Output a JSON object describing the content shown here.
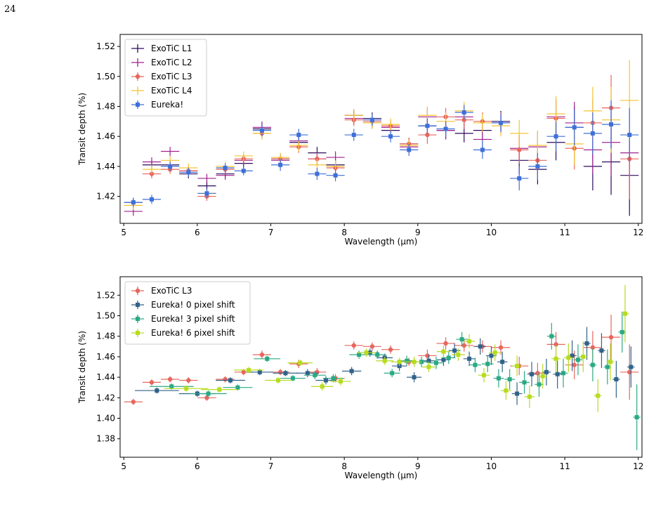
{
  "page_number": "24",
  "chart_data": [
    {
      "type": "scatter",
      "title": "",
      "xlabel": "Wavelength (µm)",
      "ylabel": "Transit depth (%)",
      "xlim": [
        4.95,
        12.05
      ],
      "ylim": [
        1.402,
        1.528
      ],
      "xticks": [
        5,
        6,
        7,
        8,
        9,
        10,
        11,
        12
      ],
      "yticks": [
        1.42,
        1.44,
        1.46,
        1.48,
        1.5,
        1.52
      ],
      "ytick_labels": [
        "1.42",
        "1.44",
        "1.46",
        "1.48",
        "1.50",
        "1.52"
      ],
      "grid": false,
      "legend_position": "top-left",
      "x": [
        5.13,
        5.38,
        5.63,
        5.88,
        6.13,
        6.38,
        6.63,
        6.88,
        7.13,
        7.38,
        7.63,
        7.88,
        8.13,
        8.38,
        8.63,
        8.88,
        9.13,
        9.38,
        9.63,
        9.88,
        10.13,
        10.38,
        10.63,
        10.88,
        11.13,
        11.38,
        11.63,
        11.88
      ],
      "xerr": 0.125,
      "series": [
        {
          "name": "ExoTiC L1",
          "color": "#2c0a5e",
          "marker": "none",
          "y": [
            1.416,
            1.441,
            1.441,
            1.435,
            1.427,
            1.435,
            1.442,
            1.465,
            1.445,
            1.456,
            1.449,
            1.441,
            1.474,
            1.472,
            1.464,
            1.455,
            1.467,
            1.464,
            1.462,
            1.464,
            1.47,
            1.444,
            1.438,
            1.456,
            1.466,
            1.44,
            1.443,
            1.434
          ],
          "yerr": [
            0.003,
            0.003,
            0.003,
            0.003,
            0.003,
            0.003,
            0.003,
            0.004,
            0.003,
            0.004,
            0.004,
            0.004,
            0.004,
            0.004,
            0.004,
            0.004,
            0.006,
            0.006,
            0.006,
            0.006,
            0.007,
            0.009,
            0.01,
            0.012,
            0.014,
            0.016,
            0.022,
            0.027
          ]
        },
        {
          "name": "ExoTiC L2",
          "color": "#a1228f",
          "marker": "none",
          "y": [
            1.41,
            1.443,
            1.45,
            1.437,
            1.432,
            1.434,
            1.444,
            1.466,
            1.444,
            1.457,
            1.445,
            1.446,
            1.472,
            1.469,
            1.466,
            1.453,
            1.473,
            1.464,
            1.473,
            1.458,
            1.469,
            1.452,
            1.453,
            1.473,
            1.469,
            1.451,
            1.456,
            1.449
          ],
          "yerr": [
            0.003,
            0.003,
            0.003,
            0.003,
            0.003,
            0.003,
            0.003,
            0.004,
            0.003,
            0.004,
            0.004,
            0.004,
            0.004,
            0.004,
            0.004,
            0.004,
            0.006,
            0.006,
            0.006,
            0.006,
            0.007,
            0.009,
            0.01,
            0.012,
            0.014,
            0.016,
            0.022,
            0.027
          ]
        },
        {
          "name": "ExoTiC L3",
          "color": "#e8665e",
          "marker": "circle",
          "y": [
            1.416,
            1.435,
            1.438,
            1.437,
            1.42,
            1.438,
            1.445,
            1.462,
            1.445,
            1.453,
            1.445,
            1.439,
            1.471,
            1.47,
            1.467,
            1.455,
            1.461,
            1.473,
            1.471,
            1.47,
            1.469,
            1.451,
            1.444,
            1.472,
            1.452,
            1.469,
            1.479,
            1.445
          ],
          "yerr": [
            0.003,
            0.003,
            0.003,
            0.003,
            0.003,
            0.003,
            0.003,
            0.004,
            0.003,
            0.004,
            0.004,
            0.004,
            0.004,
            0.004,
            0.004,
            0.004,
            0.006,
            0.006,
            0.006,
            0.006,
            0.007,
            0.009,
            0.01,
            0.012,
            0.014,
            0.016,
            0.022,
            0.027
          ]
        },
        {
          "name": "ExoTiC L4",
          "color": "#f5c431",
          "marker": "none",
          "y": [
            1.414,
            1.438,
            1.444,
            1.439,
            1.422,
            1.44,
            1.447,
            1.462,
            1.446,
            1.454,
            1.441,
            1.44,
            1.474,
            1.469,
            1.468,
            1.454,
            1.474,
            1.47,
            1.477,
            1.469,
            1.467,
            1.462,
            1.454,
            1.475,
            1.455,
            1.477,
            1.471,
            1.484
          ],
          "yerr": [
            0.003,
            0.003,
            0.003,
            0.003,
            0.003,
            0.003,
            0.003,
            0.004,
            0.003,
            0.004,
            0.004,
            0.004,
            0.004,
            0.004,
            0.004,
            0.004,
            0.006,
            0.006,
            0.006,
            0.006,
            0.007,
            0.009,
            0.01,
            0.012,
            0.014,
            0.016,
            0.022,
            0.027
          ]
        },
        {
          "name": "Eureka!",
          "color": "#3e6fd8",
          "marker": "square",
          "x": [
            5.13,
            5.38,
            5.63,
            5.88,
            6.13,
            6.38,
            6.63,
            6.88,
            7.13,
            7.38,
            7.63,
            7.88,
            8.13,
            8.38,
            8.63,
            8.88,
            9.13,
            9.38,
            9.63,
            9.88,
            10.13,
            10.38,
            10.63,
            10.88,
            11.13,
            11.38,
            11.63,
            11.88
          ],
          "y": [
            1.416,
            1.418,
            1.44,
            1.436,
            1.422,
            1.439,
            1.437,
            1.464,
            1.441,
            1.461,
            1.435,
            1.434,
            1.461,
            1.471,
            1.46,
            1.451,
            1.467,
            1.465,
            1.476,
            1.451,
            1.469,
            1.432,
            1.44,
            1.46,
            1.466,
            1.462,
            1.468,
            1.461
          ],
          "yerr": [
            0.003,
            0.003,
            0.003,
            0.003,
            0.003,
            0.003,
            0.003,
            0.004,
            0.004,
            0.004,
            0.004,
            0.004,
            0.004,
            0.004,
            0.004,
            0.004,
            0.005,
            0.005,
            0.005,
            0.006,
            0.006,
            0.008,
            0.009,
            0.01,
            0.012,
            0.014,
            0.016,
            0.018
          ]
        }
      ]
    },
    {
      "type": "scatter",
      "title": "",
      "xlabel": "Wavelength (µm)",
      "ylabel": "Transit depth (%)",
      "xlim": [
        4.95,
        12.05
      ],
      "ylim": [
        1.362,
        1.538
      ],
      "xticks": [
        5,
        6,
        7,
        8,
        9,
        10,
        11,
        12
      ],
      "yticks": [
        1.38,
        1.4,
        1.42,
        1.44,
        1.46,
        1.48,
        1.5,
        1.52
      ],
      "ytick_labels": [
        "1.38",
        "1.40",
        "1.42",
        "1.44",
        "1.46",
        "1.48",
        "1.50",
        "1.52"
      ],
      "grid": false,
      "legend_position": "top-left",
      "series": [
        {
          "name": "ExoTiC L3",
          "color": "#e8665e",
          "marker": "circle",
          "x": [
            5.13,
            5.38,
            5.63,
            5.88,
            6.13,
            6.38,
            6.63,
            6.88,
            7.13,
            7.38,
            7.63,
            7.88,
            8.13,
            8.38,
            8.63,
            8.88,
            9.13,
            9.38,
            9.63,
            9.88,
            10.13,
            10.38,
            10.63,
            10.88,
            11.13,
            11.38,
            11.63,
            11.88
          ],
          "xerr": [
            0.125,
            0.125,
            0.125,
            0.125,
            0.125,
            0.125,
            0.125,
            0.125,
            0.125,
            0.125,
            0.125,
            0.125,
            0.125,
            0.125,
            0.125,
            0.125,
            0.125,
            0.125,
            0.125,
            0.125,
            0.125,
            0.125,
            0.125,
            0.125,
            0.125,
            0.125,
            0.125,
            0.125
          ],
          "y": [
            1.416,
            1.435,
            1.438,
            1.437,
            1.42,
            1.438,
            1.445,
            1.462,
            1.445,
            1.453,
            1.445,
            1.439,
            1.471,
            1.47,
            1.467,
            1.455,
            1.461,
            1.473,
            1.471,
            1.47,
            1.469,
            1.451,
            1.444,
            1.472,
            1.452,
            1.469,
            1.479,
            1.445
          ],
          "yerr": [
            0.003,
            0.003,
            0.003,
            0.003,
            0.003,
            0.003,
            0.003,
            0.004,
            0.003,
            0.004,
            0.004,
            0.004,
            0.004,
            0.004,
            0.004,
            0.004,
            0.006,
            0.006,
            0.006,
            0.006,
            0.007,
            0.009,
            0.01,
            0.012,
            0.014,
            0.016,
            0.022,
            0.027
          ]
        },
        {
          "name": "Eureka! 0 pixel shift",
          "color": "#31628a",
          "marker": "square",
          "x": [
            5.45,
            6.0,
            6.45,
            6.85,
            7.2,
            7.5,
            7.75,
            8.1,
            8.35,
            8.55,
            8.75,
            8.95,
            9.15,
            9.35,
            9.5,
            9.7,
            9.85,
            10.0,
            10.15,
            10.35,
            10.55,
            10.75,
            10.9,
            11.1,
            11.3,
            11.5,
            11.7,
            11.9
          ],
          "xerr": [
            0.3,
            0.25,
            0.2,
            0.18,
            0.17,
            0.15,
            0.14,
            0.13,
            0.12,
            0.11,
            0.1,
            0.1,
            0.09,
            0.09,
            0.08,
            0.08,
            0.08,
            0.07,
            0.07,
            0.07,
            0.06,
            0.06,
            0.06,
            0.06,
            0.05,
            0.05,
            0.05,
            0.05
          ],
          "y": [
            1.427,
            1.424,
            1.437,
            1.445,
            1.444,
            1.444,
            1.437,
            1.446,
            1.464,
            1.459,
            1.451,
            1.44,
            1.456,
            1.457,
            1.466,
            1.458,
            1.47,
            1.461,
            1.455,
            1.424,
            1.443,
            1.445,
            1.443,
            1.461,
            1.473,
            1.466,
            1.438,
            1.45
          ],
          "yerr": [
            0.003,
            0.003,
            0.003,
            0.003,
            0.003,
            0.004,
            0.004,
            0.004,
            0.004,
            0.004,
            0.005,
            0.005,
            0.006,
            0.006,
            0.007,
            0.007,
            0.008,
            0.009,
            0.01,
            0.011,
            0.012,
            0.013,
            0.014,
            0.015,
            0.016,
            0.017,
            0.018,
            0.02
          ]
        },
        {
          "name": "Eureka! 3 pixel shift",
          "color": "#2aa983",
          "marker": "square",
          "x": [
            5.65,
            6.15,
            6.55,
            6.95,
            7.3,
            7.6,
            7.85,
            8.2,
            8.45,
            8.65,
            8.85,
            9.05,
            9.25,
            9.42,
            9.6,
            9.78,
            9.95,
            10.1,
            10.25,
            10.45,
            10.65,
            10.82,
            10.98,
            11.18,
            11.38,
            11.58,
            11.78,
            11.98
          ],
          "xerr": [
            0.3,
            0.25,
            0.2,
            0.18,
            0.17,
            0.15,
            0.14,
            0.13,
            0.12,
            0.11,
            0.1,
            0.1,
            0.09,
            0.09,
            0.08,
            0.08,
            0.08,
            0.07,
            0.07,
            0.07,
            0.06,
            0.06,
            0.06,
            0.06,
            0.05,
            0.05,
            0.05,
            0.05
          ],
          "y": [
            1.431,
            1.424,
            1.43,
            1.458,
            1.439,
            1.442,
            1.439,
            1.462,
            1.462,
            1.444,
            1.456,
            1.455,
            1.454,
            1.459,
            1.477,
            1.452,
            1.453,
            1.439,
            1.438,
            1.435,
            1.433,
            1.48,
            1.444,
            1.457,
            1.452,
            1.45,
            1.484,
            1.401
          ],
          "yerr": [
            0.003,
            0.003,
            0.003,
            0.003,
            0.003,
            0.004,
            0.004,
            0.004,
            0.004,
            0.004,
            0.005,
            0.005,
            0.006,
            0.006,
            0.007,
            0.007,
            0.008,
            0.009,
            0.01,
            0.011,
            0.012,
            0.013,
            0.014,
            0.015,
            0.016,
            0.017,
            0.02,
            0.032
          ]
        },
        {
          "name": "Eureka! 6 pixel shift",
          "color": "#b7db1f",
          "marker": "square",
          "x": [
            5.85,
            6.3,
            6.7,
            7.1,
            7.4,
            7.7,
            7.95,
            8.3,
            8.55,
            8.75,
            8.95,
            9.15,
            9.35,
            9.55,
            9.7,
            9.9,
            10.05,
            10.2,
            10.35,
            10.52,
            10.7,
            10.88,
            11.05,
            11.25,
            11.45,
            11.62,
            11.82
          ],
          "xerr": [
            0.3,
            0.25,
            0.2,
            0.18,
            0.17,
            0.15,
            0.14,
            0.13,
            0.12,
            0.11,
            0.1,
            0.1,
            0.09,
            0.09,
            0.08,
            0.08,
            0.08,
            0.07,
            0.07,
            0.07,
            0.06,
            0.06,
            0.06,
            0.06,
            0.05,
            0.05,
            0.05
          ],
          "y": [
            1.429,
            1.428,
            1.447,
            1.437,
            1.454,
            1.431,
            1.436,
            1.464,
            1.456,
            1.455,
            1.455,
            1.45,
            1.465,
            1.462,
            1.475,
            1.442,
            1.464,
            1.427,
            1.451,
            1.421,
            1.441,
            1.458,
            1.459,
            1.46,
            1.422,
            1.455,
            1.502
          ],
          "yerr": [
            0.003,
            0.003,
            0.003,
            0.003,
            0.003,
            0.004,
            0.004,
            0.004,
            0.004,
            0.004,
            0.005,
            0.005,
            0.006,
            0.006,
            0.007,
            0.007,
            0.008,
            0.009,
            0.01,
            0.011,
            0.012,
            0.013,
            0.014,
            0.015,
            0.016,
            0.018,
            0.028
          ]
        }
      ]
    }
  ]
}
